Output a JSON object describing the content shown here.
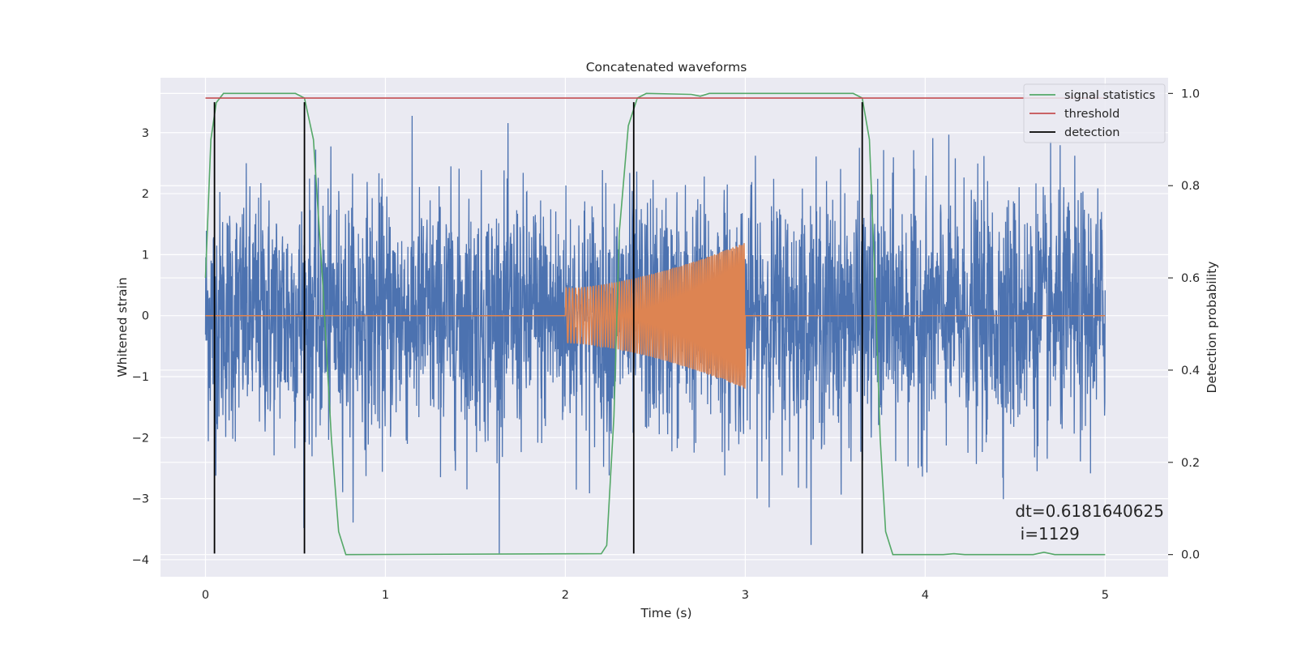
{
  "chart_data": {
    "type": "line",
    "title": "Concatenated waveforms",
    "xlabel": "Time (s)",
    "ylabel": "Whitened strain",
    "y2label": "Detection probability",
    "xlim": [
      -0.25,
      5.35
    ],
    "ylim": [
      -4.28,
      3.9
    ],
    "y2lim": [
      -0.048,
      1.034
    ],
    "xticks": [
      "0",
      "1",
      "2",
      "3",
      "4",
      "5"
    ],
    "xtick_values": [
      0,
      1,
      2,
      3,
      4,
      5
    ],
    "yticks": [
      "−4",
      "−3",
      "−2",
      "−1",
      "0",
      "1",
      "2",
      "3"
    ],
    "ytick_values": [
      -4,
      -3,
      -2,
      -1,
      0,
      1,
      2,
      3
    ],
    "y2ticks": [
      "0.0",
      "0.2",
      "0.4",
      "0.6",
      "0.8",
      "1.0"
    ],
    "y2tick_values": [
      0.0,
      0.2,
      0.4,
      0.6,
      0.8,
      1.0
    ],
    "grid": true,
    "legend_position": "top-right",
    "series": [
      {
        "name": "",
        "kind": "noise",
        "axis": "left",
        "color": "#4c72b0",
        "x_range": [
          0,
          5
        ],
        "typical_amplitude": 1.0,
        "peak_amplitude": 3.5
      },
      {
        "name": "",
        "kind": "chirp",
        "axis": "left",
        "color": "#dd8452",
        "x_range": [
          0,
          5
        ],
        "chirp_start": 2.0,
        "chirp_end": 3.0,
        "amplitude_start": 0.45,
        "amplitude_end": 1.2
      },
      {
        "name": "signal statistics",
        "axis": "right",
        "color": "#55a868",
        "points": [
          [
            0.0,
            0.6
          ],
          [
            0.03,
            0.9
          ],
          [
            0.06,
            0.98
          ],
          [
            0.1,
            1.0
          ],
          [
            0.5,
            1.0
          ],
          [
            0.55,
            0.99
          ],
          [
            0.6,
            0.9
          ],
          [
            0.65,
            0.6
          ],
          [
            0.7,
            0.25
          ],
          [
            0.74,
            0.05
          ],
          [
            0.78,
            0.0
          ],
          [
            2.2,
            0.002
          ],
          [
            2.23,
            0.02
          ],
          [
            2.27,
            0.3
          ],
          [
            2.3,
            0.7
          ],
          [
            2.35,
            0.93
          ],
          [
            2.4,
            0.99
          ],
          [
            2.45,
            1.0
          ],
          [
            2.7,
            0.998
          ],
          [
            2.75,
            0.994
          ],
          [
            2.8,
            1.0
          ],
          [
            3.6,
            1.0
          ],
          [
            3.65,
            0.99
          ],
          [
            3.69,
            0.9
          ],
          [
            3.72,
            0.6
          ],
          [
            3.75,
            0.25
          ],
          [
            3.78,
            0.05
          ],
          [
            3.82,
            0.0
          ],
          [
            4.1,
            0.0
          ],
          [
            4.16,
            0.002
          ],
          [
            4.22,
            0.0
          ],
          [
            4.6,
            0.0
          ],
          [
            4.66,
            0.005
          ],
          [
            4.72,
            0.0
          ],
          [
            5.0,
            0.0
          ]
        ]
      },
      {
        "name": "threshold",
        "axis": "right",
        "color": "#c44e52",
        "value": 0.99,
        "x_range": [
          0,
          5
        ]
      },
      {
        "name": "detection",
        "axis": "left",
        "color": "#000000",
        "x": [
          0.05,
          0.55,
          2.38,
          3.65
        ],
        "y_range": [
          -3.9,
          3.5
        ]
      }
    ],
    "annotation": {
      "line1": "dt=0.6181640625",
      "line2": " i=1129",
      "x": 4.5,
      "y": -3.3
    }
  },
  "colors": {
    "axes_bg": "#eaeaf2",
    "grid": "#ffffff"
  }
}
